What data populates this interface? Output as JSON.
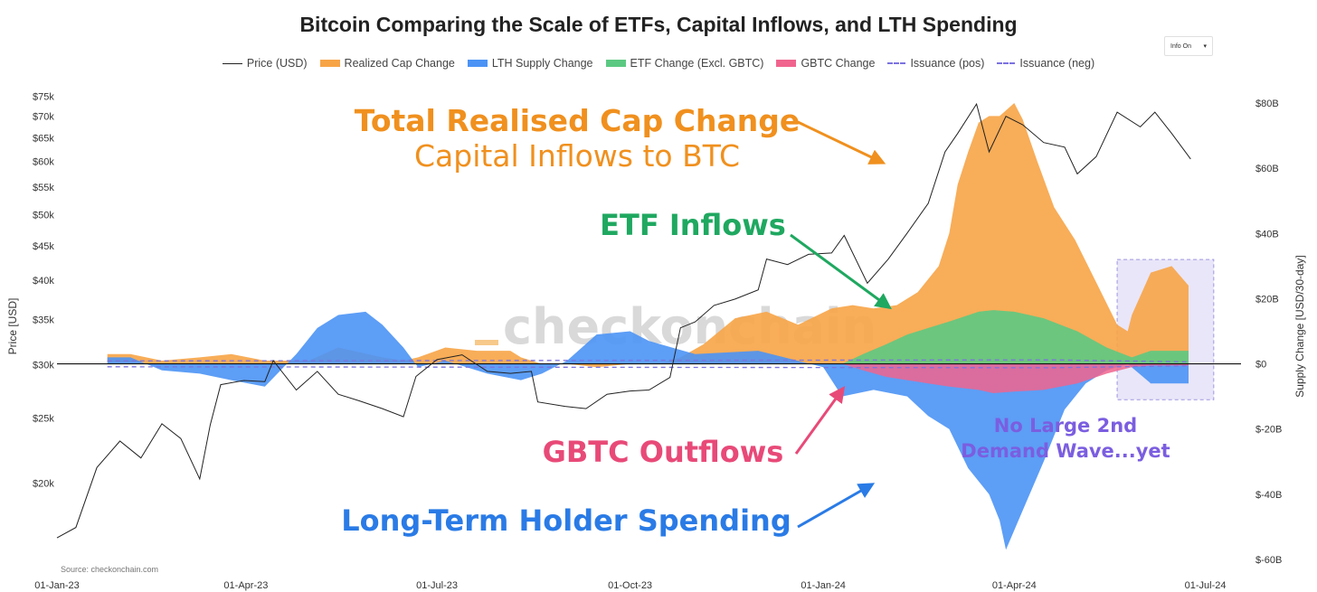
{
  "chart_data": {
    "type": "area",
    "title": "Bitcoin Comparing the Scale of ETFs, Capital Inflows, and LTH Spending",
    "legend_position": "top-center",
    "grid": false,
    "legend": [
      {
        "name": "Price (USD)",
        "color": "#222222",
        "style": "line"
      },
      {
        "name": "Realized Cap Change",
        "color": "#f7a446",
        "style": "area"
      },
      {
        "name": "LTH Supply Change",
        "color": "#4b93f5",
        "style": "area"
      },
      {
        "name": "ETF Change (Excl. GBTC)",
        "color": "#5cc982",
        "style": "area"
      },
      {
        "name": "GBTC Change",
        "color": "#f0648e",
        "style": "area"
      },
      {
        "name": "Issuance (pos)",
        "color": "#7b72e0",
        "style": "dashed"
      },
      {
        "name": "Issuance (neg)",
        "color": "#7b72e0",
        "style": "dashed"
      }
    ],
    "y_left_label": "Price [USD]",
    "y_right_label": "Supply Change [USD/30-day]",
    "y_left_scale": "log",
    "y_left_range": [
      16000,
      76000
    ],
    "y_right_range": [
      -60,
      80
    ],
    "x_range": [
      "2023-01-01",
      "2024-07-18"
    ],
    "x_ticks": [
      "01-Jan-23",
      "01-Apr-23",
      "01-Jul-23",
      "01-Oct-23",
      "01-Jan-24",
      "01-Apr-24",
      "01-Jul-24"
    ],
    "y_left_ticks": [
      "$75k",
      "$70k",
      "$65k",
      "$60k",
      "$55k",
      "$50k",
      "$45k",
      "$40k",
      "$35k",
      "$30k",
      "$25k",
      "$20k"
    ],
    "y_left_tick_values": [
      75000,
      70000,
      65000,
      60000,
      55000,
      50000,
      45000,
      40000,
      35000,
      30000,
      25000,
      20000
    ],
    "y_right_ticks": [
      "$80B",
      "$60B",
      "$40B",
      "$20B",
      "$0",
      "$-20B",
      "$-40B",
      "$-60B"
    ],
    "y_right_tick_values": [
      80,
      60,
      40,
      20,
      0,
      -20,
      -40,
      -60
    ],
    "price": {
      "x": [
        "2023-01-01",
        "2023-01-10",
        "2023-01-20",
        "2023-01-31",
        "2023-02-10",
        "2023-02-20",
        "2023-03-01",
        "2023-03-10",
        "2023-03-15",
        "2023-03-20",
        "2023-03-31",
        "2023-04-10",
        "2023-04-14",
        "2023-04-25",
        "2023-05-05",
        "2023-05-15",
        "2023-05-25",
        "2023-06-05",
        "2023-06-15",
        "2023-06-21",
        "2023-07-01",
        "2023-07-13",
        "2023-07-25",
        "2023-08-05",
        "2023-08-15",
        "2023-08-18",
        "2023-08-31",
        "2023-09-10",
        "2023-09-20",
        "2023-10-01",
        "2023-10-10",
        "2023-10-20",
        "2023-10-25",
        "2023-11-01",
        "2023-11-10",
        "2023-11-20",
        "2023-12-01",
        "2023-12-05",
        "2023-12-15",
        "2023-12-25",
        "2024-01-05",
        "2024-01-11",
        "2024-01-22",
        "2024-02-01",
        "2024-02-10",
        "2024-02-20",
        "2024-02-28",
        "2024-03-05",
        "2024-03-14",
        "2024-03-20",
        "2024-03-28",
        "2024-04-05",
        "2024-04-15",
        "2024-04-25",
        "2024-05-01",
        "2024-05-10",
        "2024-05-20",
        "2024-05-31",
        "2024-06-07",
        "2024-06-15",
        "2024-06-24"
      ],
      "y": [
        16600,
        17200,
        21100,
        23100,
        21800,
        24500,
        23300,
        20300,
        24400,
        28000,
        28400,
        28300,
        30400,
        27500,
        29300,
        27100,
        26500,
        25800,
        25100,
        28800,
        30500,
        31000,
        29300,
        29100,
        29300,
        26400,
        26000,
        25800,
        27100,
        27400,
        27500,
        28700,
        34000,
        34700,
        36700,
        37500,
        38700,
        43000,
        42200,
        43700,
        43900,
        46600,
        39600,
        43000,
        47000,
        52000,
        62000,
        66000,
        73000,
        62000,
        70000,
        68000,
        64000,
        63000,
        57500,
        61000,
        71000,
        67500,
        71000,
        66000,
        60500
      ]
    },
    "series": [
      {
        "name": "Realized Cap Change",
        "x": [
          "2023-01-25",
          "2023-02-05",
          "2023-02-20",
          "2023-03-10",
          "2023-03-25",
          "2023-04-10",
          "2023-05-01",
          "2023-05-15",
          "2023-06-05",
          "2023-06-15",
          "2023-06-22",
          "2023-07-05",
          "2023-07-20",
          "2023-08-05",
          "2023-08-10",
          "2023-08-20",
          "2023-09-01",
          "2023-09-15",
          "2023-10-01",
          "2023-10-15",
          "2023-10-25",
          "2023-11-05",
          "2023-11-20",
          "2023-12-05",
          "2023-12-20",
          "2024-01-05",
          "2024-01-15",
          "2024-01-25",
          "2024-02-05",
          "2024-02-15",
          "2024-02-25",
          "2024-03-01",
          "2024-03-05",
          "2024-03-10",
          "2024-03-15",
          "2024-03-20",
          "2024-03-25",
          "2024-04-01",
          "2024-04-05",
          "2024-04-12",
          "2024-04-20",
          "2024-04-30",
          "2024-05-10",
          "2024-05-20",
          "2024-05-25",
          "2024-05-27",
          "2024-06-05",
          "2024-06-15",
          "2024-06-23"
        ],
        "y": [
          3,
          3,
          1,
          2,
          3,
          1,
          1,
          5,
          2,
          1,
          2,
          5,
          4,
          4,
          2,
          0,
          0,
          -1,
          0,
          0,
          2,
          6,
          14,
          16,
          12,
          17,
          18,
          17,
          18,
          22,
          30,
          40,
          55,
          65,
          74,
          76,
          76,
          80,
          75,
          62,
          48,
          38,
          25,
          12,
          10,
          15,
          28,
          30,
          24
        ]
      },
      {
        "name": "LTH Supply Change",
        "x": [
          "2023-01-25",
          "2023-02-05",
          "2023-02-20",
          "2023-03-10",
          "2023-03-25",
          "2023-04-10",
          "2023-04-25",
          "2023-05-05",
          "2023-05-15",
          "2023-05-28",
          "2023-06-05",
          "2023-06-15",
          "2023-06-22",
          "2023-07-05",
          "2023-07-25",
          "2023-08-10",
          "2023-08-20",
          "2023-09-01",
          "2023-09-15",
          "2023-10-01",
          "2023-10-10",
          "2023-11-01",
          "2023-12-01",
          "2024-01-01",
          "2024-01-10",
          "2024-01-25",
          "2024-02-10",
          "2024-02-20",
          "2024-03-01",
          "2024-03-10",
          "2024-03-20",
          "2024-03-25",
          "2024-03-28",
          "2024-04-05",
          "2024-04-15",
          "2024-04-25",
          "2024-05-05",
          "2024-05-15",
          "2024-05-25",
          "2024-06-05",
          "2024-06-23"
        ],
        "y": [
          2,
          2,
          -2,
          -3,
          -5,
          -7,
          3,
          11,
          15,
          16,
          12,
          5,
          -1,
          1,
          -3,
          -5,
          -3,
          1,
          9,
          10,
          7,
          3,
          4,
          -1,
          -10,
          -8,
          -10,
          -16,
          -20,
          -32,
          -40,
          -48,
          -57,
          -45,
          -30,
          -14,
          -6,
          -2,
          0,
          -6,
          -6
        ]
      },
      {
        "name": "ETF Change (Excl. GBTC)",
        "x": [
          "2024-01-10",
          "2024-01-20",
          "2024-01-31",
          "2024-02-10",
          "2024-02-20",
          "2024-03-01",
          "2024-03-15",
          "2024-03-22",
          "2024-04-01",
          "2024-04-15",
          "2024-05-01",
          "2024-05-15",
          "2024-05-27",
          "2024-06-05",
          "2024-06-23"
        ],
        "y": [
          0,
          3,
          6,
          9,
          11,
          13,
          16,
          16.5,
          16,
          14,
          10,
          5,
          2,
          4,
          4
        ]
      },
      {
        "name": "GBTC Change",
        "x": [
          "2024-01-10",
          "2024-01-20",
          "2024-01-31",
          "2024-02-10",
          "2024-02-20",
          "2024-03-01",
          "2024-03-15",
          "2024-03-22",
          "2024-04-01",
          "2024-04-15",
          "2024-05-01",
          "2024-05-15",
          "2024-05-27",
          "2024-06-05",
          "2024-06-23"
        ],
        "y": [
          0,
          -2,
          -4,
          -5,
          -6,
          -7,
          -8,
          -9,
          -8.5,
          -8,
          -6,
          -3,
          -1,
          -0.5,
          -0.5
        ]
      },
      {
        "name": "Issuance (pos)",
        "x": [
          "2023-01-25",
          "2024-04-19",
          "2024-06-23"
        ],
        "y": [
          0.9,
          1.2,
          0.6
        ]
      },
      {
        "name": "Issuance (neg)",
        "x": [
          "2023-01-25",
          "2024-04-19",
          "2024-06-23"
        ],
        "y": [
          -0.9,
          -1.2,
          -0.6
        ]
      }
    ],
    "annotations": [
      {
        "text": "Total Realised Cap Change",
        "color": "#f0901e"
      },
      {
        "text": "Capital Inflows to BTC",
        "color": "#f0901e"
      },
      {
        "text": "ETF Inflows",
        "color": "#1fa860"
      },
      {
        "text": "GBTC Outflows",
        "color": "#e84a78"
      },
      {
        "text": "Long-Term Holder Spending",
        "color": "#2a7be6"
      },
      {
        "text": "No Large 2nd",
        "color": "#7b5ee0"
      },
      {
        "text": "Demand Wave...yet",
        "color": "#7b5ee0"
      }
    ],
    "highlight_box": {
      "x": [
        "2024-05-20",
        "2024-07-05"
      ],
      "y": [
        -11,
        32
      ],
      "color": "#c8c0f0"
    },
    "watermark": "checkonchain",
    "source": "Source: checkonchain.com"
  },
  "controls": {
    "info_toggle_label": "Info On",
    "info_toggle_arrow": "▾"
  }
}
